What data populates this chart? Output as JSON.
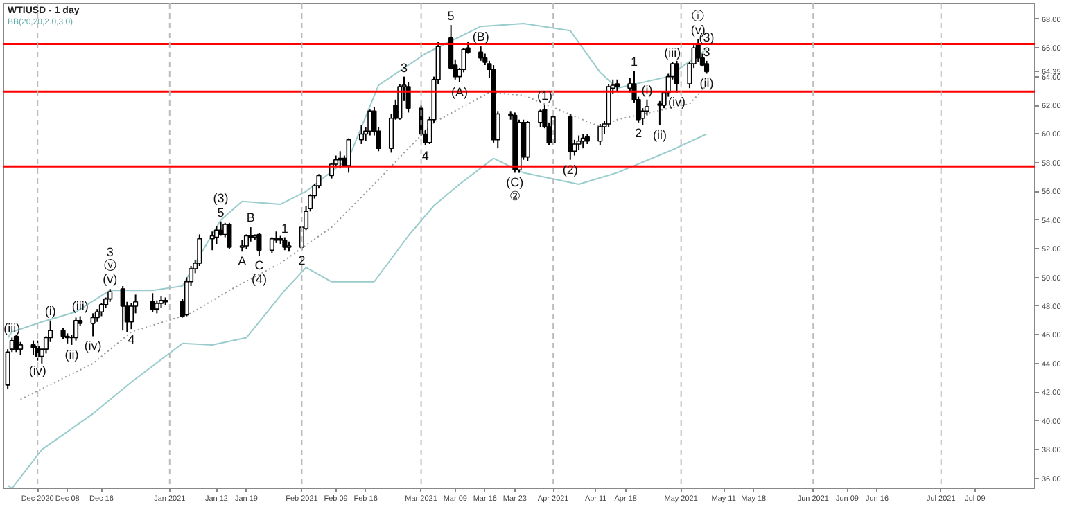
{
  "chart_data": {
    "type": "candlestick",
    "title": "WTIUSD - 1 day",
    "subtitle": "BB(20,20,2.0,3.0)",
    "x": [
      "2020-11-24",
      "2020-11-25",
      "2020-11-26",
      "2020-11-27",
      "2020-11-30",
      "2020-12-01",
      "2020-12-02",
      "2020-12-03",
      "2020-12-04",
      "2020-12-07",
      "2020-12-08",
      "2020-12-09",
      "2020-12-10",
      "2020-12-11",
      "2020-12-14",
      "2020-12-15",
      "2020-12-16",
      "2020-12-17",
      "2020-12-18",
      "2020-12-21",
      "2020-12-22",
      "2020-12-23",
      "2020-12-24",
      "2020-12-28",
      "2020-12-29",
      "2020-12-30",
      "2020-12-31",
      "2021-01-04",
      "2021-01-05",
      "2021-01-06",
      "2021-01-07",
      "2021-01-08",
      "2021-01-11",
      "2021-01-12",
      "2021-01-13",
      "2021-01-14",
      "2021-01-15",
      "2021-01-18",
      "2021-01-19",
      "2021-01-20",
      "2021-01-21",
      "2021-01-22",
      "2021-01-25",
      "2021-01-26",
      "2021-01-27",
      "2021-01-28",
      "2021-01-29",
      "2021-02-01",
      "2021-02-02",
      "2021-02-03",
      "2021-02-04",
      "2021-02-05",
      "2021-02-08",
      "2021-02-09",
      "2021-02-10",
      "2021-02-11",
      "2021-02-12",
      "2021-02-15",
      "2021-02-16",
      "2021-02-17",
      "2021-02-18",
      "2021-02-19",
      "2021-02-22",
      "2021-02-23",
      "2021-02-24",
      "2021-02-25",
      "2021-02-26",
      "2021-03-01",
      "2021-03-02",
      "2021-03-03",
      "2021-03-04",
      "2021-03-05",
      "2021-03-08",
      "2021-03-09",
      "2021-03-10",
      "2021-03-11",
      "2021-03-12",
      "2021-03-15",
      "2021-03-16",
      "2021-03-17",
      "2021-03-18",
      "2021-03-19",
      "2021-03-22",
      "2021-03-23",
      "2021-03-24",
      "2021-03-25",
      "2021-03-26",
      "2021-03-29",
      "2021-03-30",
      "2021-03-31",
      "2021-04-01",
      "2021-04-05",
      "2021-04-06",
      "2021-04-07",
      "2021-04-08",
      "2021-04-09",
      "2021-04-12",
      "2021-04-13",
      "2021-04-14",
      "2021-04-15",
      "2021-04-16",
      "2021-04-19",
      "2021-04-20",
      "2021-04-21",
      "2021-04-22",
      "2021-04-23",
      "2021-04-26",
      "2021-04-27",
      "2021-04-28",
      "2021-04-29",
      "2021-04-30",
      "2021-05-03",
      "2021-05-04",
      "2021-05-05",
      "2021-05-06",
      "2021-05-07"
    ],
    "ohlc": [
      [
        42.5,
        45.0,
        42.2,
        44.8
      ],
      [
        45.0,
        45.8,
        44.8,
        45.6
      ],
      [
        45.9,
        46.0,
        44.8,
        45.0
      ],
      [
        45.0,
        45.5,
        44.6,
        45.3
      ],
      [
        45.3,
        45.6,
        44.6,
        45.1
      ],
      [
        45.2,
        45.6,
        44.2,
        44.5
      ],
      [
        44.5,
        45.0,
        44.0,
        45.0
      ],
      [
        45.0,
        45.9,
        44.7,
        45.8
      ],
      [
        45.8,
        47.0,
        45.5,
        46.3
      ],
      [
        46.3,
        46.5,
        45.7,
        45.9
      ],
      [
        45.9,
        46.1,
        45.4,
        45.8
      ],
      [
        45.8,
        46.0,
        45.3,
        45.8
      ],
      [
        45.8,
        47.2,
        45.6,
        47.0
      ],
      [
        47.0,
        47.3,
        46.6,
        46.8
      ],
      [
        46.8,
        47.5,
        45.9,
        47.2
      ],
      [
        47.2,
        47.8,
        46.9,
        47.6
      ],
      [
        47.6,
        48.2,
        47.3,
        48.1
      ],
      [
        48.1,
        48.6,
        47.9,
        48.5
      ],
      [
        48.5,
        49.2,
        48.3,
        49.0
      ],
      [
        49.2,
        49.4,
        46.3,
        48.0
      ],
      [
        48.0,
        48.3,
        46.2,
        46.9
      ],
      [
        46.9,
        48.2,
        46.4,
        48.0
      ],
      [
        48.0,
        48.8,
        47.5,
        48.3
      ],
      [
        48.3,
        48.9,
        47.6,
        47.8
      ],
      [
        47.8,
        48.4,
        47.5,
        48.2
      ],
      [
        48.2,
        48.7,
        47.9,
        48.4
      ],
      [
        48.4,
        48.6,
        48.1,
        48.3
      ],
      [
        48.3,
        48.5,
        47.2,
        47.3
      ],
      [
        47.4,
        50.0,
        47.3,
        49.7
      ],
      [
        49.7,
        50.8,
        49.4,
        50.6
      ],
      [
        50.6,
        51.2,
        50.3,
        51.0
      ],
      [
        51.0,
        53.0,
        50.8,
        52.7
      ],
      [
        52.7,
        53.2,
        51.9,
        52.9
      ],
      [
        52.8,
        53.6,
        52.3,
        53.3
      ],
      [
        53.3,
        53.9,
        52.9,
        53.0
      ],
      [
        53.0,
        53.8,
        52.8,
        53.7
      ],
      [
        53.7,
        53.8,
        52.0,
        52.1
      ],
      [
        52.1,
        52.6,
        51.8,
        52.2
      ],
      [
        52.2,
        53.0,
        52.0,
        52.9
      ],
      [
        52.9,
        53.5,
        52.5,
        52.8
      ],
      [
        52.8,
        53.0,
        52.6,
        52.9
      ],
      [
        53.0,
        53.1,
        51.5,
        51.9
      ],
      [
        51.9,
        52.8,
        51.7,
        52.7
      ],
      [
        52.7,
        53.2,
        52.4,
        52.6
      ],
      [
        52.7,
        52.9,
        52.3,
        52.6
      ],
      [
        52.6,
        52.8,
        51.9,
        52.1
      ],
      [
        52.1,
        52.5,
        51.8,
        52.2
      ],
      [
        52.1,
        53.6,
        51.9,
        53.5
      ],
      [
        53.4,
        55.0,
        53.3,
        54.6
      ],
      [
        54.8,
        55.8,
        54.6,
        55.7
      ],
      [
        55.7,
        56.5,
        55.5,
        56.4
      ],
      [
        56.4,
        57.2,
        56.2,
        57.1
      ],
      [
        57.1,
        58.0,
        56.9,
        57.9
      ],
      [
        57.9,
        58.5,
        57.7,
        58.2
      ],
      [
        58.2,
        58.8,
        57.6,
        58.3
      ],
      [
        58.3,
        58.5,
        57.7,
        57.8
      ],
      [
        57.8,
        59.7,
        57.3,
        59.6
      ],
      [
        59.6,
        60.6,
        59.3,
        60.0
      ],
      [
        60.0,
        60.5,
        59.5,
        60.2
      ],
      [
        60.2,
        61.7,
        59.9,
        61.6
      ],
      [
        61.6,
        61.9,
        59.9,
        60.2
      ],
      [
        60.2,
        60.5,
        58.8,
        59.0
      ],
      [
        59.0,
        61.4,
        58.7,
        61.1
      ],
      [
        62.0,
        62.4,
        61.0,
        61.1
      ],
      [
        61.1,
        63.5,
        61.0,
        63.3
      ],
      [
        63.3,
        64.0,
        62.3,
        63.4
      ],
      [
        63.3,
        63.6,
        61.5,
        61.8
      ],
      [
        61.8,
        62.0,
        59.9,
        60.0
      ],
      [
        60.0,
        60.3,
        59.2,
        59.4
      ],
      [
        59.4,
        61.2,
        59.3,
        61.0
      ],
      [
        61.0,
        64.0,
        60.8,
        63.8
      ],
      [
        63.8,
        66.4,
        63.5,
        66.1
      ],
      [
        66.7,
        67.6,
        64.5,
        64.6
      ],
      [
        64.8,
        65.2,
        63.8,
        64.0
      ],
      [
        64.0,
        64.6,
        63.6,
        64.5
      ],
      [
        64.5,
        66.0,
        64.3,
        65.9
      ],
      [
        66.0,
        66.4,
        65.6,
        65.7
      ],
      [
        65.7,
        66.1,
        65.1,
        65.3
      ],
      [
        65.3,
        65.6,
        64.8,
        65.0
      ],
      [
        64.9,
        65.1,
        63.9,
        64.5
      ],
      [
        64.5,
        64.8,
        59.4,
        59.6
      ],
      [
        59.6,
        61.6,
        59.0,
        61.4
      ],
      [
        61.4,
        61.6,
        61.0,
        61.3
      ],
      [
        61.3,
        61.5,
        57.3,
        57.5
      ],
      [
        57.5,
        61.0,
        57.3,
        60.8
      ],
      [
        60.8,
        61.0,
        58.2,
        58.4
      ],
      [
        58.4,
        60.9,
        58.1,
        60.8
      ],
      [
        60.8,
        61.7,
        60.5,
        61.6
      ],
      [
        61.7,
        62.0,
        60.4,
        60.5
      ],
      [
        60.5,
        60.8,
        59.2,
        59.4
      ],
      [
        59.4,
        61.3,
        59.2,
        61.2
      ],
      [
        61.2,
        61.4,
        58.2,
        58.8
      ],
      [
        58.8,
        59.6,
        58.5,
        59.3
      ],
      [
        59.3,
        59.9,
        58.9,
        59.5
      ],
      [
        59.5,
        60.0,
        59.0,
        59.7
      ],
      [
        59.8,
        60.0,
        59.3,
        59.5
      ],
      [
        59.5,
        60.7,
        59.2,
        60.5
      ],
      [
        60.5,
        60.9,
        60.0,
        60.7
      ],
      [
        60.7,
        63.5,
        60.5,
        63.3
      ],
      [
        63.2,
        63.8,
        62.8,
        63.4
      ],
      [
        63.5,
        63.8,
        63.0,
        63.3
      ],
      [
        63.2,
        63.9,
        62.9,
        63.5
      ],
      [
        63.5,
        64.4,
        62.2,
        62.4
      ],
      [
        62.4,
        62.6,
        60.8,
        61.0
      ],
      [
        61.1,
        61.8,
        60.6,
        61.6
      ],
      [
        61.6,
        62.4,
        61.3,
        61.9
      ],
      [
        62.1,
        62.3,
        60.6,
        62.0
      ],
      [
        62.0,
        63.0,
        61.8,
        62.9
      ],
      [
        62.9,
        64.2,
        62.6,
        64.0
      ],
      [
        64.0,
        65.0,
        63.8,
        64.9
      ],
      [
        64.9,
        65.1,
        62.9,
        63.5
      ],
      [
        63.5,
        65.0,
        63.2,
        64.9
      ],
      [
        64.9,
        66.2,
        64.6,
        66.0
      ],
      [
        66.2,
        66.6,
        65.0,
        65.3
      ],
      [
        65.3,
        65.6,
        64.7,
        64.8
      ],
      [
        64.9,
        65.1,
        64.2,
        64.35
      ]
    ],
    "series": [
      {
        "type": "line",
        "color": "#99cccc",
        "x": [
          "2020-11-24",
          "2020-11-25",
          "2020-12-02",
          "2020-12-10",
          "2020-12-18",
          "2020-12-28",
          "2021-01-04",
          "2021-01-08",
          "2021-01-13",
          "2021-01-18",
          "2021-01-27",
          "2021-02-02",
          "2021-02-12",
          "2021-02-19",
          "2021-03-02",
          "2021-03-15",
          "2021-03-25",
          "2021-04-05",
          "2021-04-12",
          "2021-04-16",
          "2021-04-28",
          "2021-05-07"
        ],
        "values": [
          45.8,
          46.2,
          46.9,
          47.6,
          49.1,
          49.1,
          49.4,
          51.5,
          54.0,
          55.3,
          55.1,
          56.0,
          58.3,
          63.4,
          65.6,
          67.5,
          67.7,
          67.2,
          64.3,
          63.2,
          64.0,
          65.9
        ]
      },
      {
        "type": "line",
        "color": "#999999",
        "line_style": "dotted",
        "x": [
          "2020-11-27",
          "2020-12-14",
          "2020-12-23",
          "2021-01-06",
          "2021-01-15",
          "2021-01-27",
          "2021-02-08",
          "2021-02-18",
          "2021-02-26",
          "2021-03-04",
          "2021-03-17",
          "2021-03-25",
          "2021-04-12",
          "2021-04-16",
          "2021-05-03",
          "2021-05-07"
        ],
        "values": [
          41.5,
          44.0,
          46.2,
          47.5,
          49.1,
          51.0,
          53.5,
          56.5,
          59.0,
          60.8,
          62.9,
          62.7,
          60.5,
          61.0,
          62.1,
          63.4
        ]
      },
      {
        "type": "line",
        "color": "#99cccc",
        "x": [
          "2020-11-24",
          "2020-11-25",
          "2020-12-02",
          "2020-12-14",
          "2020-12-23",
          "2021-01-04",
          "2021-01-11",
          "2021-01-19",
          "2021-01-28",
          "2021-02-02",
          "2021-02-08",
          "2021-02-18",
          "2021-02-26",
          "2021-03-04",
          "2021-03-10",
          "2021-03-18",
          "2021-03-25",
          "2021-04-07",
          "2021-04-16",
          "2021-04-29",
          "2021-05-07"
        ],
        "values": [
          35.5,
          35.3,
          38.0,
          40.5,
          42.7,
          45.4,
          45.3,
          45.8,
          49.1,
          50.7,
          49.7,
          49.7,
          52.9,
          55.0,
          56.5,
          58.3,
          57.3,
          56.5,
          57.3,
          58.9,
          60.0
        ]
      }
    ],
    "xlim": [
      "2020-11-23",
      "2021-07-23"
    ],
    "xticks": [
      {
        "value": "2020-12-01",
        "label": "Dec 2020"
      },
      {
        "value": "2020-12-08",
        "label": "Dec 08"
      },
      {
        "value": "2020-12-16",
        "label": "Dec 16"
      },
      {
        "value": "2021-01-01",
        "label": "Jan 2021"
      },
      {
        "value": "2021-01-12",
        "label": "Jan 12"
      },
      {
        "value": "2021-01-19",
        "label": "Jan 19"
      },
      {
        "value": "2021-02-01",
        "label": "Feb 2021"
      },
      {
        "value": "2021-02-09",
        "label": "Feb 09"
      },
      {
        "value": "2021-02-16",
        "label": "Feb 16"
      },
      {
        "value": "2021-03-01",
        "label": "Mar 2021"
      },
      {
        "value": "2021-03-09",
        "label": "Mar 09"
      },
      {
        "value": "2021-03-16",
        "label": "Mar 16"
      },
      {
        "value": "2021-03-23",
        "label": "Mar 23"
      },
      {
        "value": "2021-04-01",
        "label": "Apr 2021"
      },
      {
        "value": "2021-04-11",
        "label": "Apr 11"
      },
      {
        "value": "2021-04-18",
        "label": "Apr 18"
      },
      {
        "value": "2021-05-01",
        "label": "May 2021"
      },
      {
        "value": "2021-05-11",
        "label": "May 11"
      },
      {
        "value": "2021-05-18",
        "label": "May 18"
      },
      {
        "value": "2021-06-01",
        "label": "Jun 2021"
      },
      {
        "value": "2021-06-09",
        "label": "Jun 09"
      },
      {
        "value": "2021-06-16",
        "label": "Jun 16"
      },
      {
        "value": "2021-07-01",
        "label": "Jul 2021"
      },
      {
        "value": "2021-07-09",
        "label": "Jul 09"
      }
    ],
    "ylim": [
      35.3,
      69.1
    ],
    "yticks": [
      {
        "value": 36,
        "label": "36.00"
      },
      {
        "value": 38,
        "label": "38.00"
      },
      {
        "value": 40,
        "label": "40.00"
      },
      {
        "value": 42,
        "label": "42.00"
      },
      {
        "value": 44,
        "label": "44.00"
      },
      {
        "value": 46,
        "label": "46.00"
      },
      {
        "value": 48,
        "label": "48.00"
      },
      {
        "value": 50,
        "label": "50.00"
      },
      {
        "value": 52,
        "label": "52.00"
      },
      {
        "value": 54,
        "label": "54.00"
      },
      {
        "value": 56,
        "label": "56.00"
      },
      {
        "value": 58,
        "label": "58.00"
      },
      {
        "value": 60,
        "label": "60.00"
      },
      {
        "value": 62,
        "label": "62.00"
      },
      {
        "value": 64,
        "label": "64.00"
      },
      {
        "value": 64.35,
        "label": "64.35"
      },
      {
        "value": 66,
        "label": "66.00"
      },
      {
        "value": 68,
        "label": "68.00"
      }
    ],
    "ref_lines": [
      {
        "axis": "y",
        "value": 66.27,
        "color": "#ff0000",
        "line_style": "solid"
      },
      {
        "axis": "y",
        "value": 62.95,
        "color": "#ff0000",
        "line_style": "solid"
      },
      {
        "axis": "y",
        "value": 57.74,
        "color": "#ff0000",
        "line_style": "solid"
      },
      {
        "axis": "x",
        "value": "2020-12-01",
        "color": "#bbbbbb",
        "line_style": "dashed"
      },
      {
        "axis": "x",
        "value": "2021-01-01",
        "color": "#bbbbbb",
        "line_style": "dashed"
      },
      {
        "axis": "x",
        "value": "2021-02-01",
        "color": "#bbbbbb",
        "line_style": "dashed"
      },
      {
        "axis": "x",
        "value": "2021-03-01",
        "color": "#bbbbbb",
        "line_style": "dashed"
      },
      {
        "axis": "x",
        "value": "2021-04-01",
        "color": "#bbbbbb",
        "line_style": "dashed"
      },
      {
        "axis": "x",
        "value": "2021-05-01",
        "color": "#bbbbbb",
        "line_style": "dashed"
      },
      {
        "axis": "x",
        "value": "2021-06-01",
        "color": "#bbbbbb",
        "line_style": "dashed"
      },
      {
        "axis": "x",
        "value": "2021-07-01",
        "color": "#bbbbbb",
        "line_style": "dashed"
      }
    ],
    "annotations": [
      {
        "text": "(iii)",
        "x": "2020-11-25",
        "y": 45.8
      },
      {
        "text": "(iv)",
        "x": "2020-12-01",
        "y": 44.2
      },
      {
        "text": "(i)",
        "x": "2020-12-04",
        "y": 47.0
      },
      {
        "text": "(ii)",
        "x": "2020-12-09",
        "y": 45.3
      },
      {
        "text": "(iii)",
        "x": "2020-12-11",
        "y": 47.3
      },
      {
        "text": "(iv)",
        "x": "2020-12-14",
        "y": 45.9
      },
      {
        "text": "3",
        "x": "2020-12-18",
        "y": 49.2
      },
      {
        "text": "ⓥ",
        "x": "2020-12-18",
        "y": 49.2
      },
      {
        "text": "(v)",
        "x": "2020-12-18",
        "y": 49.2
      },
      {
        "text": "4",
        "x": "2020-12-23",
        "y": 46.4
      },
      {
        "text": "(3)",
        "x": "2021-01-13",
        "y": 53.9
      },
      {
        "text": "5",
        "x": "2021-01-13",
        "y": 53.9
      },
      {
        "text": "B",
        "x": "2021-01-20",
        "y": 53.5
      },
      {
        "text": "A",
        "x": "2021-01-18",
        "y": 51.8
      },
      {
        "text": "1",
        "x": "2021-01-28",
        "y": 52.8
      },
      {
        "text": "C",
        "x": "2021-01-22",
        "y": 51.5
      },
      {
        "text": "(4)",
        "x": "2021-01-22",
        "y": 51.5
      },
      {
        "text": "2",
        "x": "2021-02-01",
        "y": 51.9
      },
      {
        "text": "3",
        "x": "2021-02-25",
        "y": 64.0
      },
      {
        "text": "4",
        "x": "2021-03-02",
        "y": 59.2
      },
      {
        "text": "5",
        "x": "2021-03-08",
        "y": 67.6
      },
      {
        "text": "(A)",
        "x": "2021-03-10",
        "y": 63.6
      },
      {
        "text": "(B)",
        "x": "2021-03-15",
        "y": 66.1
      },
      {
        "text": "(C)",
        "x": "2021-03-23",
        "y": 57.3
      },
      {
        "text": "②",
        "x": "2021-03-23",
        "y": 57.3
      },
      {
        "text": "(1)",
        "x": "2021-03-30",
        "y": 62.0
      },
      {
        "text": "(2)",
        "x": "2021-04-05",
        "y": 58.2
      },
      {
        "text": "1",
        "x": "2021-04-20",
        "y": 64.4
      },
      {
        "text": "2",
        "x": "2021-04-21",
        "y": 60.8
      },
      {
        "text": "(i)",
        "x": "2021-04-23",
        "y": 62.4
      },
      {
        "text": "(ii)",
        "x": "2021-04-26",
        "y": 60.6
      },
      {
        "text": "(iii)",
        "x": "2021-04-29",
        "y": 65.0
      },
      {
        "text": "(iv)",
        "x": "2021-04-30",
        "y": 62.9
      },
      {
        "text": "ⓘ",
        "x": "2021-05-05",
        "y": 66.6
      },
      {
        "text": "(v)",
        "x": "2021-05-05",
        "y": 66.6
      },
      {
        "text": "(3)",
        "x": "2021-05-07",
        "y": 65.1
      },
      {
        "text": "3",
        "x": "2021-05-07",
        "y": 65.1
      },
      {
        "text": "(ii)",
        "x": "2021-05-07",
        "y": 64.2
      }
    ]
  }
}
